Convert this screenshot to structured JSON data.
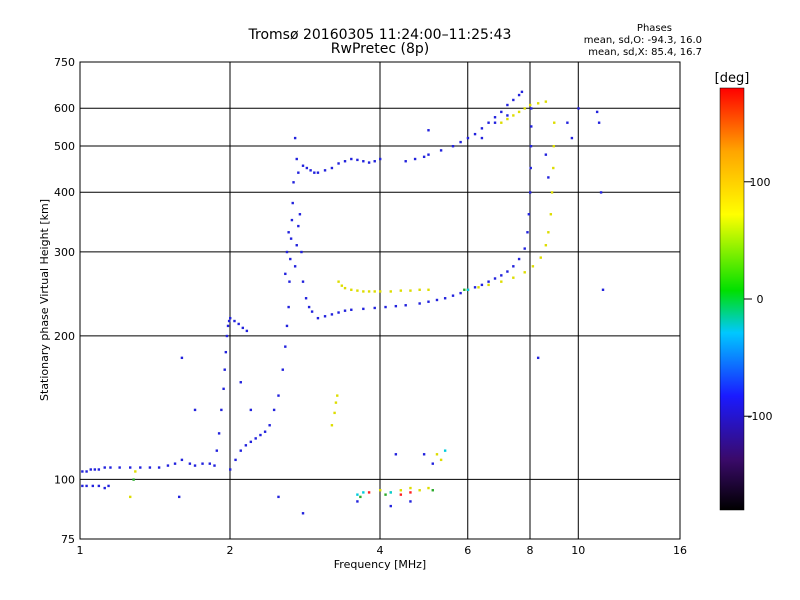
{
  "header": {
    "title_line1": "Tromsø 20160305 11:24:00–11:25:43",
    "title_line2": "RwPretec (8p)"
  },
  "phase_info": {
    "heading": "Phases",
    "o_line": "mean, sd,O: -94.3, 16.0",
    "x_line": "mean, sd,X: 85.4, 16.7"
  },
  "chart_data": {
    "type": "scatter",
    "xlabel": "Frequency [MHz]",
    "ylabel": "Stationary phase Virtual Height [km]",
    "xscale": "log",
    "yscale": "log",
    "xlim": [
      1,
      16
    ],
    "ylim": [
      75,
      750
    ],
    "xticks": [
      1,
      2,
      4,
      6,
      8,
      10,
      16
    ],
    "yticks": [
      75,
      100,
      200,
      300,
      400,
      500,
      600,
      750
    ],
    "xgrid": [
      2,
      4,
      6,
      8,
      10
    ],
    "ygrid": [
      100,
      200,
      300,
      400,
      500,
      600
    ],
    "grid": true,
    "colorbar": {
      "label": "[deg]",
      "min": -180,
      "max": 180,
      "ticks": [
        100,
        0,
        -100
      ],
      "colors": [
        "#000000",
        "#3a0a6a",
        "#1a1aff",
        "#00c8ff",
        "#00e000",
        "#ffff00",
        "#ffa500",
        "#ff0000"
      ]
    },
    "series": [
      {
        "color": "#2222dd",
        "points": [
          [
            1.01,
            104
          ],
          [
            1.03,
            104
          ],
          [
            1.05,
            105
          ],
          [
            1.07,
            105
          ],
          [
            1.09,
            105
          ],
          [
            1.12,
            106
          ],
          [
            1.15,
            106
          ],
          [
            1.01,
            97
          ],
          [
            1.03,
            97
          ],
          [
            1.06,
            97
          ],
          [
            1.09,
            97
          ],
          [
            1.12,
            96
          ],
          [
            1.14,
            97
          ],
          [
            1.2,
            106
          ],
          [
            1.26,
            106
          ],
          [
            1.32,
            106
          ],
          [
            1.38,
            106
          ],
          [
            1.44,
            106
          ],
          [
            1.5,
            107
          ],
          [
            1.55,
            108
          ],
          [
            1.6,
            110
          ],
          [
            1.66,
            108
          ],
          [
            1.7,
            107
          ],
          [
            1.76,
            108
          ],
          [
            1.82,
            108
          ],
          [
            1.86,
            107
          ],
          [
            1.88,
            115
          ],
          [
            1.9,
            125
          ],
          [
            1.92,
            140
          ],
          [
            1.94,
            155
          ],
          [
            1.95,
            170
          ],
          [
            1.96,
            185
          ],
          [
            1.97,
            200
          ],
          [
            1.98,
            210
          ],
          [
            1.99,
            215
          ],
          [
            2.0,
            218
          ],
          [
            2.04,
            215
          ],
          [
            2.08,
            212
          ],
          [
            2.12,
            208
          ],
          [
            2.16,
            205
          ],
          [
            2.0,
            105
          ],
          [
            2.05,
            110
          ],
          [
            2.1,
            115
          ],
          [
            2.15,
            118
          ],
          [
            2.2,
            120
          ],
          [
            2.25,
            122
          ],
          [
            2.3,
            124
          ],
          [
            2.35,
            126
          ],
          [
            2.4,
            130
          ],
          [
            2.45,
            140
          ],
          [
            2.5,
            150
          ],
          [
            2.55,
            170
          ],
          [
            2.58,
            190
          ],
          [
            2.6,
            210
          ],
          [
            2.62,
            230
          ],
          [
            2.63,
            260
          ],
          [
            2.64,
            290
          ],
          [
            2.65,
            320
          ],
          [
            2.66,
            350
          ],
          [
            2.67,
            380
          ],
          [
            2.68,
            420
          ],
          [
            2.58,
            270
          ],
          [
            2.6,
            300
          ],
          [
            2.62,
            330
          ],
          [
            2.7,
            280
          ],
          [
            2.72,
            310
          ],
          [
            2.74,
            340
          ],
          [
            2.76,
            360
          ],
          [
            2.78,
            300
          ],
          [
            2.8,
            260
          ],
          [
            2.84,
            240
          ],
          [
            2.88,
            230
          ],
          [
            2.92,
            225
          ],
          [
            2.7,
            520
          ],
          [
            2.72,
            470
          ],
          [
            2.74,
            440
          ],
          [
            2.8,
            455
          ],
          [
            2.85,
            450
          ],
          [
            2.9,
            445
          ],
          [
            2.95,
            440
          ],
          [
            3.0,
            440
          ],
          [
            3.1,
            445
          ],
          [
            3.2,
            450
          ],
          [
            3.3,
            460
          ],
          [
            3.4,
            465
          ],
          [
            3.5,
            470
          ],
          [
            3.6,
            468
          ],
          [
            3.7,
            465
          ],
          [
            3.8,
            462
          ],
          [
            3.9,
            465
          ],
          [
            4.0,
            470
          ],
          [
            3.0,
            218
          ],
          [
            3.1,
            220
          ],
          [
            3.2,
            222
          ],
          [
            3.3,
            224
          ],
          [
            3.4,
            226
          ],
          [
            3.5,
            227
          ],
          [
            3.7,
            228
          ],
          [
            3.9,
            229
          ],
          [
            4.1,
            230
          ],
          [
            4.3,
            231
          ],
          [
            4.5,
            232
          ],
          [
            4.8,
            234
          ],
          [
            5.0,
            236
          ],
          [
            5.2,
            238
          ],
          [
            5.4,
            240
          ],
          [
            5.6,
            243
          ],
          [
            5.8,
            246
          ],
          [
            6.0,
            250
          ],
          [
            6.2,
            253
          ],
          [
            6.4,
            256
          ],
          [
            6.6,
            260
          ],
          [
            6.8,
            264
          ],
          [
            7.0,
            268
          ],
          [
            7.2,
            273
          ],
          [
            7.4,
            280
          ],
          [
            7.6,
            290
          ],
          [
            7.8,
            305
          ],
          [
            7.9,
            330
          ],
          [
            7.95,
            360
          ],
          [
            8.0,
            400
          ],
          [
            8.02,
            450
          ],
          [
            8.03,
            500
          ],
          [
            8.04,
            550
          ],
          [
            8.04,
            600
          ],
          [
            4.5,
            465
          ],
          [
            4.7,
            470
          ],
          [
            4.9,
            475
          ],
          [
            5.0,
            480
          ],
          [
            5.3,
            490
          ],
          [
            5.6,
            500
          ],
          [
            5.8,
            510
          ],
          [
            6.0,
            520
          ],
          [
            6.2,
            530
          ],
          [
            6.4,
            545
          ],
          [
            6.6,
            560
          ],
          [
            6.8,
            575
          ],
          [
            7.0,
            590
          ],
          [
            7.2,
            610
          ],
          [
            7.4,
            625
          ],
          [
            7.6,
            640
          ],
          [
            7.7,
            650
          ],
          [
            5.0,
            540
          ],
          [
            6.4,
            520
          ],
          [
            6.8,
            560
          ],
          [
            7.2,
            580
          ],
          [
            8.6,
            480
          ],
          [
            8.7,
            430
          ],
          [
            9.5,
            560
          ],
          [
            9.7,
            520
          ],
          [
            10,
            600
          ],
          [
            10.9,
            590
          ],
          [
            11.0,
            560
          ],
          [
            11.1,
            400
          ],
          [
            11.2,
            250
          ],
          [
            4.9,
            113
          ],
          [
            5.1,
            108
          ],
          [
            4.3,
            113
          ],
          [
            4.6,
            90
          ],
          [
            4.2,
            88
          ],
          [
            3.6,
            90
          ],
          [
            2.8,
            85
          ],
          [
            2.5,
            92
          ],
          [
            1.58,
            92
          ],
          [
            1.6,
            180
          ],
          [
            1.7,
            140
          ],
          [
            2.1,
            160
          ],
          [
            2.2,
            140
          ],
          [
            8.3,
            180
          ]
        ]
      },
      {
        "color": "#dddd00",
        "points": [
          [
            1.26,
            92
          ],
          [
            1.29,
            104
          ],
          [
            3.3,
            260
          ],
          [
            3.35,
            255
          ],
          [
            3.4,
            252
          ],
          [
            3.5,
            250
          ],
          [
            3.6,
            249
          ],
          [
            3.7,
            248
          ],
          [
            3.8,
            248
          ],
          [
            3.9,
            248
          ],
          [
            4.0,
            248
          ],
          [
            4.2,
            248
          ],
          [
            4.4,
            249
          ],
          [
            4.6,
            249
          ],
          [
            4.8,
            250
          ],
          [
            5.0,
            250
          ],
          [
            3.2,
            130
          ],
          [
            3.24,
            138
          ],
          [
            3.26,
            145
          ],
          [
            3.28,
            150
          ],
          [
            6.0,
            250
          ],
          [
            6.3,
            253
          ],
          [
            6.6,
            256
          ],
          [
            7.0,
            260
          ],
          [
            7.4,
            265
          ],
          [
            7.8,
            272
          ],
          [
            8.1,
            280
          ],
          [
            8.4,
            292
          ],
          [
            8.6,
            310
          ],
          [
            8.7,
            330
          ],
          [
            8.8,
            360
          ],
          [
            8.85,
            400
          ],
          [
            8.9,
            450
          ],
          [
            8.92,
            500
          ],
          [
            8.94,
            560
          ],
          [
            7.0,
            560
          ],
          [
            7.2,
            570
          ],
          [
            7.4,
            580
          ],
          [
            7.6,
            590
          ],
          [
            7.8,
            600
          ],
          [
            8.0,
            610
          ],
          [
            8.3,
            615
          ],
          [
            8.6,
            620
          ],
          [
            4.0,
            95
          ],
          [
            4.2,
            94
          ],
          [
            4.4,
            95
          ],
          [
            4.6,
            96
          ],
          [
            4.8,
            95
          ],
          [
            5.0,
            96
          ],
          [
            5.2,
            113
          ],
          [
            5.3,
            110
          ]
        ]
      },
      {
        "color": "#00ccdd",
        "points": [
          [
            3.6,
            93
          ],
          [
            3.7,
            94
          ],
          [
            4.2,
            94
          ],
          [
            5.4,
            115
          ],
          [
            6.0,
            250
          ]
        ]
      },
      {
        "color": "#ff2020",
        "points": [
          [
            3.8,
            94
          ],
          [
            4.4,
            93
          ],
          [
            4.6,
            94
          ]
        ]
      },
      {
        "color": "#2aaa2a",
        "points": [
          [
            1.28,
            100
          ],
          [
            3.65,
            92
          ],
          [
            4.1,
            93
          ],
          [
            5.1,
            95
          ],
          [
            5.9,
            250
          ]
        ]
      }
    ]
  }
}
